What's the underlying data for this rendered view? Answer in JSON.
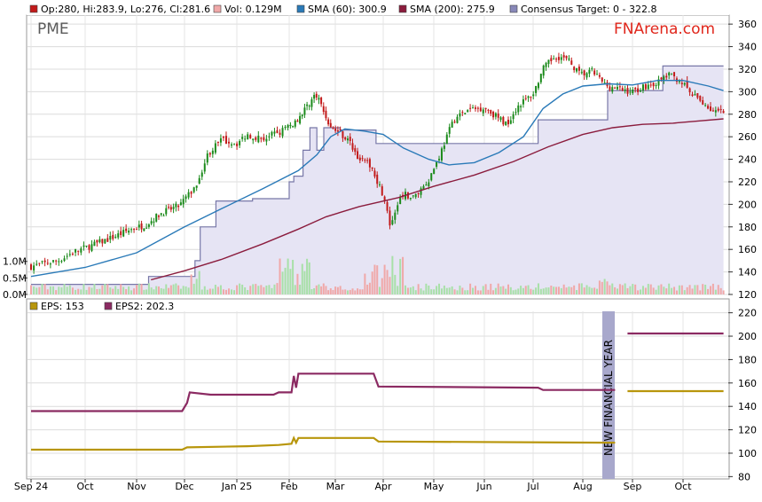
{
  "ticker": "PME",
  "brand": "FNArena.com",
  "colors": {
    "up": "#1a8a1a",
    "down": "#c21a1a",
    "sma60": "#2a7ab8",
    "sma200": "#8b1c3d",
    "consensus_line": "#7878a8",
    "consensus_fill": "#e6e4f4",
    "eps": "#b8960c",
    "eps2": "#8b2a62",
    "vol_up": "#a8e0a8",
    "vol_down": "#f0a8a8",
    "nfy_band": "#a8a8cc"
  },
  "legend_top": [
    {
      "label": "Op:280, Hi:283.9, Lo:276, Cl:281.6",
      "color": "#c21a1a"
    },
    {
      "label": "Vol: 0.129M",
      "color": "#f0a8a8"
    },
    {
      "label": "SMA (60): 300.9",
      "color": "#2a7ab8"
    },
    {
      "label": "SMA (200): 275.9",
      "color": "#8b1c3d"
    },
    {
      "label": "Consensus Target: 0 - 322.8",
      "color": "#8888b8"
    }
  ],
  "legend_bottom": [
    {
      "label": "EPS: 153",
      "color": "#b8960c"
    },
    {
      "label": "EPS2: 202.3",
      "color": "#8b2a62"
    }
  ],
  "new_financial_year_label": "NEW FINANCIAL YEAR",
  "chart_data": [
    {
      "type": "candlestick",
      "title": "",
      "x_ticks": [
        "Sep 24",
        "Oct",
        "Nov",
        "Dec",
        "Jan 25",
        "Feb",
        "Mar",
        "Apr",
        "May",
        "Jun",
        "Jul",
        "Aug",
        "Sep",
        "Oct"
      ],
      "y_ticks": [
        120,
        140,
        160,
        180,
        200,
        220,
        240,
        260,
        280,
        300,
        320,
        340,
        360
      ],
      "ylim": [
        120,
        368
      ],
      "volume_ticks": [
        "0.0M",
        "0.5M",
        "1.0M"
      ],
      "volume_lim": [
        0,
        2.2
      ],
      "months_span": [
        0,
        13.8
      ],
      "close_points": [
        [
          0,
          145
        ],
        [
          0.5,
          150
        ],
        [
          0.8,
          158
        ],
        [
          1.1,
          163
        ],
        [
          1.5,
          170
        ],
        [
          1.9,
          178
        ],
        [
          2.2,
          182
        ],
        [
          2.5,
          192
        ],
        [
          2.9,
          199
        ],
        [
          3.2,
          215
        ],
        [
          3.45,
          245
        ],
        [
          3.7,
          257
        ],
        [
          4.0,
          254
        ],
        [
          4.2,
          262
        ],
        [
          4.5,
          258
        ],
        [
          4.8,
          264
        ],
        [
          5.1,
          272
        ],
        [
          5.3,
          282
        ],
        [
          5.45,
          291
        ],
        [
          5.6,
          298
        ],
        [
          5.75,
          282
        ],
        [
          5.9,
          268
        ],
        [
          6.1,
          264
        ],
        [
          6.3,
          255
        ],
        [
          6.5,
          240
        ],
        [
          6.75,
          234
        ],
        [
          7.0,
          208
        ],
        [
          7.15,
          178
        ],
        [
          7.35,
          210
        ],
        [
          7.6,
          206
        ],
        [
          7.9,
          222
        ],
        [
          8.1,
          242
        ],
        [
          8.4,
          276
        ],
        [
          8.7,
          284
        ],
        [
          9.0,
          286
        ],
        [
          9.25,
          278
        ],
        [
          9.45,
          271
        ],
        [
          9.7,
          288
        ],
        [
          10.0,
          298
        ],
        [
          10.2,
          320
        ],
        [
          10.45,
          332
        ],
        [
          10.7,
          328
        ],
        [
          10.95,
          315
        ],
        [
          11.2,
          318
        ],
        [
          11.45,
          306
        ],
        [
          11.75,
          302
        ],
        [
          12.0,
          300
        ],
        [
          12.25,
          305
        ],
        [
          12.5,
          308
        ],
        [
          12.7,
          315
        ],
        [
          12.95,
          310
        ],
        [
          13.15,
          298
        ],
        [
          13.4,
          290
        ],
        [
          13.6,
          282
        ],
        [
          13.8,
          281.6
        ]
      ],
      "sma60_points": [
        [
          0,
          136
        ],
        [
          1,
          144
        ],
        [
          2,
          157
        ],
        [
          3,
          180
        ],
        [
          3.7,
          196
        ],
        [
          4.5,
          214
        ],
        [
          5.2,
          230
        ],
        [
          5.6,
          244
        ],
        [
          5.9,
          260
        ],
        [
          6.2,
          267
        ],
        [
          6.6,
          265
        ],
        [
          7.0,
          262
        ],
        [
          7.4,
          250
        ],
        [
          7.9,
          240
        ],
        [
          8.3,
          235
        ],
        [
          8.8,
          237
        ],
        [
          9.3,
          246
        ],
        [
          9.8,
          260
        ],
        [
          10.2,
          285
        ],
        [
          10.6,
          298
        ],
        [
          11.0,
          305
        ],
        [
          11.5,
          307
        ],
        [
          12.0,
          306
        ],
        [
          12.5,
          310
        ],
        [
          13.0,
          310
        ],
        [
          13.5,
          305
        ],
        [
          13.8,
          300.9
        ]
      ],
      "sma200_points": [
        [
          2.3,
          133
        ],
        [
          3.0,
          141
        ],
        [
          3.7,
          151
        ],
        [
          4.5,
          165
        ],
        [
          5.2,
          178
        ],
        [
          5.8,
          189
        ],
        [
          6.5,
          198
        ],
        [
          7.3,
          206
        ],
        [
          8.0,
          216
        ],
        [
          8.8,
          226
        ],
        [
          9.6,
          238
        ],
        [
          10.3,
          251
        ],
        [
          11.0,
          262
        ],
        [
          11.6,
          268
        ],
        [
          12.2,
          271
        ],
        [
          12.8,
          272
        ],
        [
          13.3,
          274
        ],
        [
          13.8,
          275.9
        ]
      ],
      "consensus_steps": [
        [
          0,
          129
        ],
        [
          2.25,
          129
        ],
        [
          2.25,
          136
        ],
        [
          3.2,
          136
        ],
        [
          3.2,
          150
        ],
        [
          3.3,
          150
        ],
        [
          3.3,
          180
        ],
        [
          3.6,
          180
        ],
        [
          3.6,
          203
        ],
        [
          4.3,
          203
        ],
        [
          4.3,
          205
        ],
        [
          5.0,
          205
        ],
        [
          5.0,
          220
        ],
        [
          5.1,
          220
        ],
        [
          5.1,
          225
        ],
        [
          5.3,
          225
        ],
        [
          5.3,
          248
        ],
        [
          5.45,
          248
        ],
        [
          5.45,
          268
        ],
        [
          5.6,
          268
        ],
        [
          5.6,
          248
        ],
        [
          5.75,
          248
        ],
        [
          5.75,
          268
        ],
        [
          6.1,
          268
        ],
        [
          6.1,
          266
        ],
        [
          6.85,
          266
        ],
        [
          6.85,
          254
        ],
        [
          10.1,
          254
        ],
        [
          10.1,
          275
        ],
        [
          11.5,
          275
        ],
        [
          11.5,
          301
        ],
        [
          12.6,
          301
        ],
        [
          12.6,
          322.8
        ],
        [
          13.8,
          322.8
        ]
      ],
      "volume_up_color": "#a8e0a8",
      "volume_down_color": "#f0a8a8"
    },
    {
      "type": "line",
      "title": "",
      "y_ticks": [
        80,
        100,
        120,
        140,
        160,
        180,
        200,
        220
      ],
      "ylim": [
        78,
        222
      ],
      "series": [
        {
          "name": "EPS",
          "points": [
            [
              0,
              103
            ],
            [
              2.95,
              103
            ],
            [
              3.05,
              105
            ],
            [
              4.2,
              106
            ],
            [
              4.8,
              107
            ],
            [
              5.05,
              108
            ],
            [
              5.1,
              113
            ],
            [
              5.15,
              109
            ],
            [
              5.2,
              113
            ],
            [
              6.8,
              113
            ],
            [
              6.9,
              110
            ],
            [
              11.5,
              109
            ],
            [
              11.65,
              109
            ]
          ]
        },
        {
          "name": "EPS2",
          "points": [
            [
              0,
              136
            ],
            [
              2.95,
              136
            ],
            [
              3.05,
              143
            ],
            [
              3.1,
              152
            ],
            [
              3.5,
              150
            ],
            [
              4.7,
              150
            ],
            [
              4.8,
              152
            ],
            [
              5.05,
              152
            ],
            [
              5.1,
              166
            ],
            [
              5.15,
              156
            ],
            [
              5.2,
              168
            ],
            [
              6.8,
              168
            ],
            [
              6.9,
              157
            ],
            [
              10.1,
              156
            ],
            [
              10.2,
              154
            ],
            [
              11.5,
              154
            ],
            [
              11.65,
              154
            ]
          ]
        },
        {
          "name": "EPS",
          "points": [
            [
              11.9,
              153
            ],
            [
              13.8,
              153
            ]
          ]
        },
        {
          "name": "EPS2",
          "points": [
            [
              11.9,
              202.3
            ],
            [
              13.8,
              202.3
            ]
          ]
        }
      ]
    }
  ]
}
